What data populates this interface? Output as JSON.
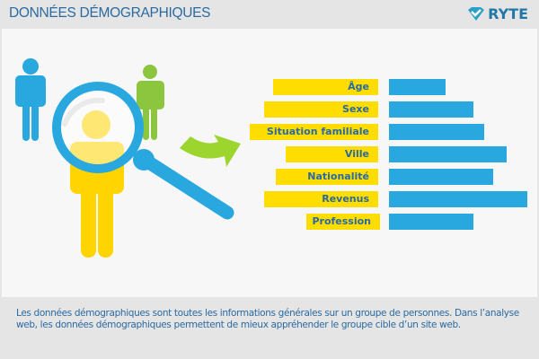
{
  "header": {
    "title": "DONNÉES DÉMOGRAPHIQUES",
    "logo_text": "RYTE"
  },
  "colors": {
    "label_bg": "#ffdd00",
    "bar": "#29a8e0",
    "text": "#2a6aa0",
    "person_blue": "#29a8e0",
    "person_green": "#8cc63f",
    "person_yellow": "#ffd400",
    "arrow": "#8cc63f"
  },
  "diagram": {
    "rows": [
      {
        "label": "Âge",
        "level": 0.41
      },
      {
        "label": "Sexe",
        "level": 0.61
      },
      {
        "label": "Situation familiale",
        "level": 0.69
      },
      {
        "label": "Ville",
        "level": 0.85
      },
      {
        "label": "Nationalité",
        "level": 0.75
      },
      {
        "label": "Revenus",
        "level": 1.0
      },
      {
        "label": "Profession",
        "level": 0.61
      }
    ]
  },
  "description": "Les données démographiques sont toutes les informations générales sur un groupe de personnes. Dans l’analyse web, les données démographiques permettent de mieux appréhender le groupe cible d’un site web."
}
